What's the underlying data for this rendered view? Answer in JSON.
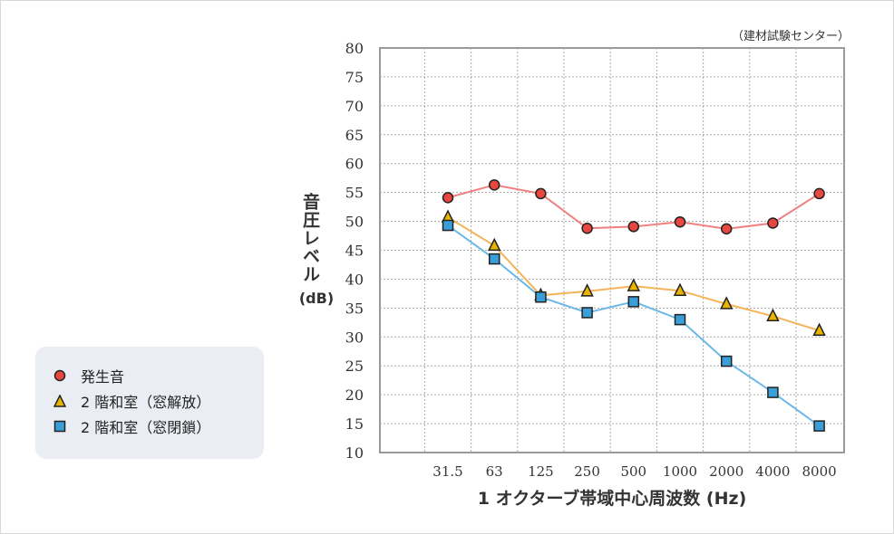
{
  "chart_data": {
    "type": "line",
    "source_note": "（建材試験センター）",
    "xlabel": "1 オクターブ帯域中心周波数 (Hz)",
    "ylabel": "音圧レベル",
    "ylabel_unit": "(dB)",
    "categories": [
      "31.5",
      "63",
      "125",
      "250",
      "500",
      "1000",
      "2000",
      "4000",
      "8000"
    ],
    "ylim": [
      10,
      80
    ],
    "yticks": [
      10,
      15,
      20,
      25,
      30,
      35,
      40,
      45,
      50,
      55,
      60,
      65,
      70,
      75,
      80
    ],
    "grid": true,
    "legend_position": "left",
    "series": [
      {
        "name": "発生音",
        "marker": "circle",
        "color": "#f08080",
        "marker_color": "#e8473f",
        "values": [
          54.1,
          56.3,
          54.8,
          48.8,
          49.1,
          49.9,
          48.7,
          49.7,
          54.8
        ]
      },
      {
        "name": "2 階和室（窓解放）",
        "marker": "triangle",
        "color": "#f5b45a",
        "marker_color": "#e8b400",
        "values": [
          50.7,
          45.8,
          37.2,
          37.9,
          38.8,
          38.0,
          35.7,
          33.6,
          31.1
        ]
      },
      {
        "name": "2 階和室（窓閉鎖）",
        "marker": "square",
        "color": "#6cb8e6",
        "marker_color": "#3a9fd8",
        "values": [
          49.3,
          43.5,
          36.9,
          34.2,
          36.1,
          33.0,
          25.8,
          20.4,
          14.6
        ]
      }
    ]
  }
}
